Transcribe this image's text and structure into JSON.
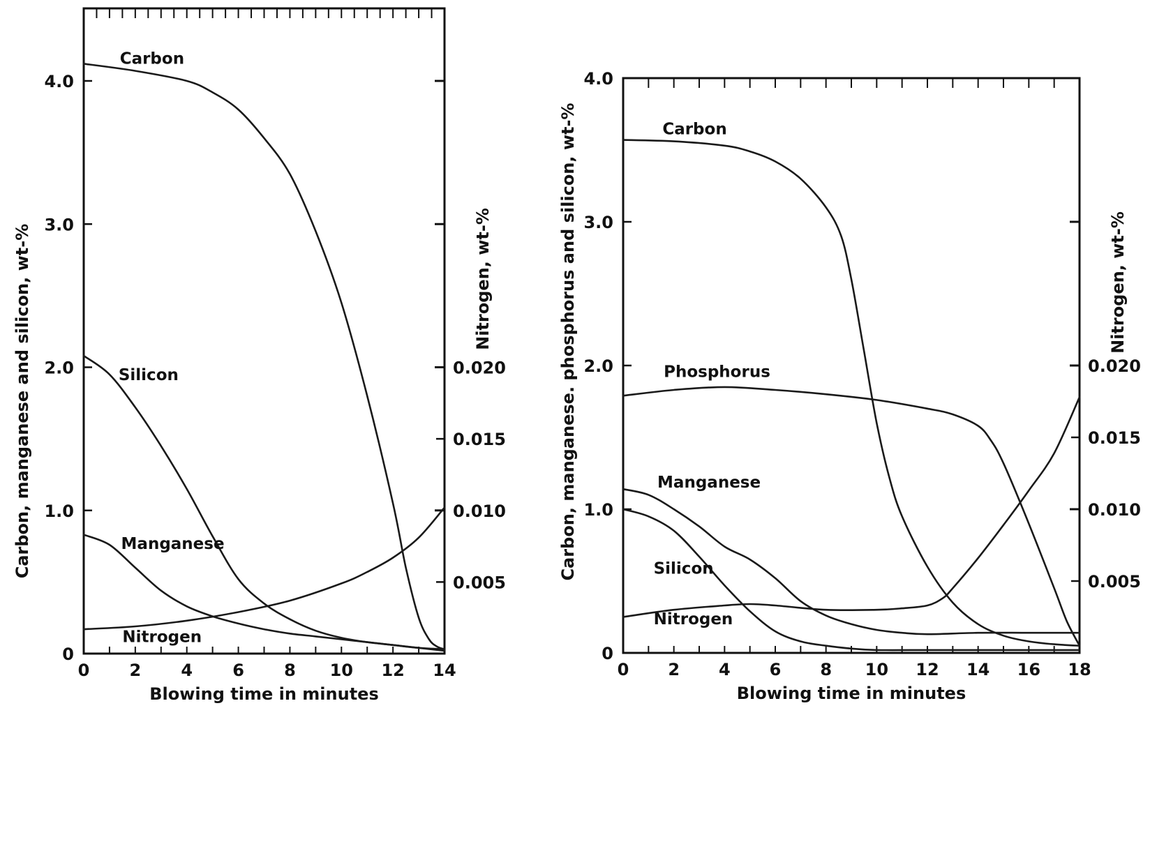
{
  "chart_data": [
    {
      "type": "line",
      "xlabel": "Blowing time in minutes",
      "ylabel": "Carbon, manganese and silicon, wt-%",
      "y2label": "Nitrogen, wt-%",
      "xlim": [
        0,
        14
      ],
      "ylim": [
        0,
        4.0
      ],
      "y2lim": [
        0,
        0.02
      ],
      "xticks": [
        "0",
        "2",
        "4",
        "6",
        "8",
        "10",
        "12",
        "14"
      ],
      "yticks": [
        "0",
        "1.0",
        "2.0",
        "3.0",
        "4.0"
      ],
      "y2ticks": [
        "0.005",
        "0.010",
        "0.015",
        "0.020"
      ],
      "grid": false,
      "series": [
        {
          "name": "Carbon",
          "axis": "left",
          "x": [
            0,
            2,
            4,
            5,
            6,
            7,
            8,
            9,
            10,
            11,
            12,
            12.5,
            13,
            13.4,
            13.7,
            14
          ],
          "y": [
            4.12,
            4.07,
            4.0,
            3.92,
            3.8,
            3.6,
            3.35,
            2.95,
            2.45,
            1.8,
            1.05,
            0.6,
            0.25,
            0.1,
            0.05,
            0.03
          ]
        },
        {
          "name": "Silicon",
          "axis": "left",
          "x": [
            0,
            1,
            2,
            3,
            4,
            5,
            6,
            7,
            8,
            9,
            10,
            11,
            12,
            13,
            14
          ],
          "y": [
            2.08,
            1.95,
            1.72,
            1.45,
            1.15,
            0.82,
            0.52,
            0.35,
            0.24,
            0.16,
            0.11,
            0.08,
            0.06,
            0.04,
            0.02
          ]
        },
        {
          "name": "Manganese",
          "axis": "left",
          "x": [
            0,
            1,
            2,
            3,
            4,
            5,
            6,
            7,
            8,
            9,
            10,
            11,
            12,
            13,
            14
          ],
          "y": [
            0.83,
            0.76,
            0.6,
            0.44,
            0.33,
            0.26,
            0.21,
            0.17,
            0.14,
            0.12,
            0.1,
            0.08,
            0.06,
            0.04,
            0.03
          ]
        },
        {
          "name": "Nitrogen",
          "axis": "right",
          "x": [
            0,
            2,
            4,
            6,
            8,
            10,
            11,
            12,
            13,
            14
          ],
          "y": [
            0.0017,
            0.0019,
            0.0023,
            0.0029,
            0.0037,
            0.0049,
            0.0057,
            0.0067,
            0.0081,
            0.0102
          ]
        }
      ],
      "labels": [
        {
          "text": "Carbon",
          "x": 1.4,
          "y": 4.12
        },
        {
          "text": "Silicon",
          "x": 1.35,
          "y": 1.91
        },
        {
          "text": "Manganese",
          "x": 1.45,
          "y": 0.73
        },
        {
          "text": "Nitrogen",
          "x": 1.5,
          "y": 0.08
        }
      ]
    },
    {
      "type": "line",
      "xlabel": "Blowing time in minutes",
      "ylabel": "Carbon, manganese. phosphorus and silicon, wt-%",
      "y2label": "Nitrogen, wt-%",
      "xlim": [
        0,
        18
      ],
      "ylim": [
        0,
        4.0
      ],
      "y2lim": [
        0,
        0.02
      ],
      "xticks": [
        "0",
        "2",
        "4",
        "6",
        "8",
        "10",
        "12",
        "14",
        "16",
        "18"
      ],
      "yticks": [
        "0",
        "1.0",
        "2.0",
        "3.0",
        "4.0"
      ],
      "y2ticks": [
        "0.005",
        "0.010",
        "0.015",
        "0.020"
      ],
      "grid": false,
      "series": [
        {
          "name": "Carbon",
          "axis": "left",
          "x": [
            0,
            2,
            4,
            5,
            6,
            7,
            8,
            8.6,
            9,
            9.5,
            10,
            10.5,
            11,
            12,
            13,
            14,
            15,
            16,
            17,
            18
          ],
          "y": [
            3.57,
            3.56,
            3.53,
            3.49,
            3.42,
            3.3,
            3.1,
            2.9,
            2.6,
            2.1,
            1.6,
            1.22,
            0.95,
            0.6,
            0.35,
            0.2,
            0.12,
            0.08,
            0.06,
            0.05
          ]
        },
        {
          "name": "Phosphorus",
          "axis": "left",
          "x": [
            0,
            2,
            4,
            6,
            8,
            10,
            12,
            13,
            14,
            14.5,
            15,
            16,
            17,
            17.5,
            18
          ],
          "y": [
            1.79,
            1.83,
            1.85,
            1.83,
            1.8,
            1.76,
            1.7,
            1.66,
            1.58,
            1.48,
            1.32,
            0.9,
            0.45,
            0.22,
            0.05
          ]
        },
        {
          "name": "Manganese",
          "axis": "left",
          "x": [
            0,
            1,
            2,
            3,
            4,
            5,
            6,
            7,
            8,
            9,
            10,
            11,
            12,
            14,
            16,
            18
          ],
          "y": [
            1.14,
            1.1,
            1.0,
            0.88,
            0.74,
            0.65,
            0.52,
            0.36,
            0.26,
            0.2,
            0.16,
            0.14,
            0.13,
            0.14,
            0.14,
            0.14
          ]
        },
        {
          "name": "Silicon",
          "axis": "left",
          "x": [
            0,
            1,
            2,
            3,
            4,
            5,
            6,
            7,
            8,
            9,
            10,
            12,
            14,
            16,
            18
          ],
          "y": [
            1.0,
            0.95,
            0.85,
            0.67,
            0.47,
            0.29,
            0.15,
            0.08,
            0.05,
            0.03,
            0.02,
            0.02,
            0.02,
            0.02,
            0.02
          ]
        },
        {
          "name": "Nitrogen",
          "axis": "right",
          "x": [
            0,
            2,
            4,
            5,
            6,
            8,
            10,
            11,
            12,
            12.6,
            13,
            14,
            15,
            16,
            17,
            18
          ],
          "y": [
            0.0025,
            0.003,
            0.0033,
            0.0034,
            0.0033,
            0.003,
            0.003,
            0.0031,
            0.0033,
            0.0038,
            0.0045,
            0.0066,
            0.0089,
            0.0113,
            0.0139,
            0.0178
          ]
        }
      ],
      "labels": [
        {
          "text": "Carbon",
          "x": 1.55,
          "y": 3.61
        },
        {
          "text": "Phosphorus",
          "x": 1.6,
          "y": 1.92
        },
        {
          "text": "Manganese",
          "x": 1.35,
          "y": 1.15
        },
        {
          "text": "Silicon",
          "x": 1.2,
          "y": 0.55
        },
        {
          "text": "Nitrogen",
          "x": 1.2,
          "y": 0.2
        }
      ]
    }
  ]
}
